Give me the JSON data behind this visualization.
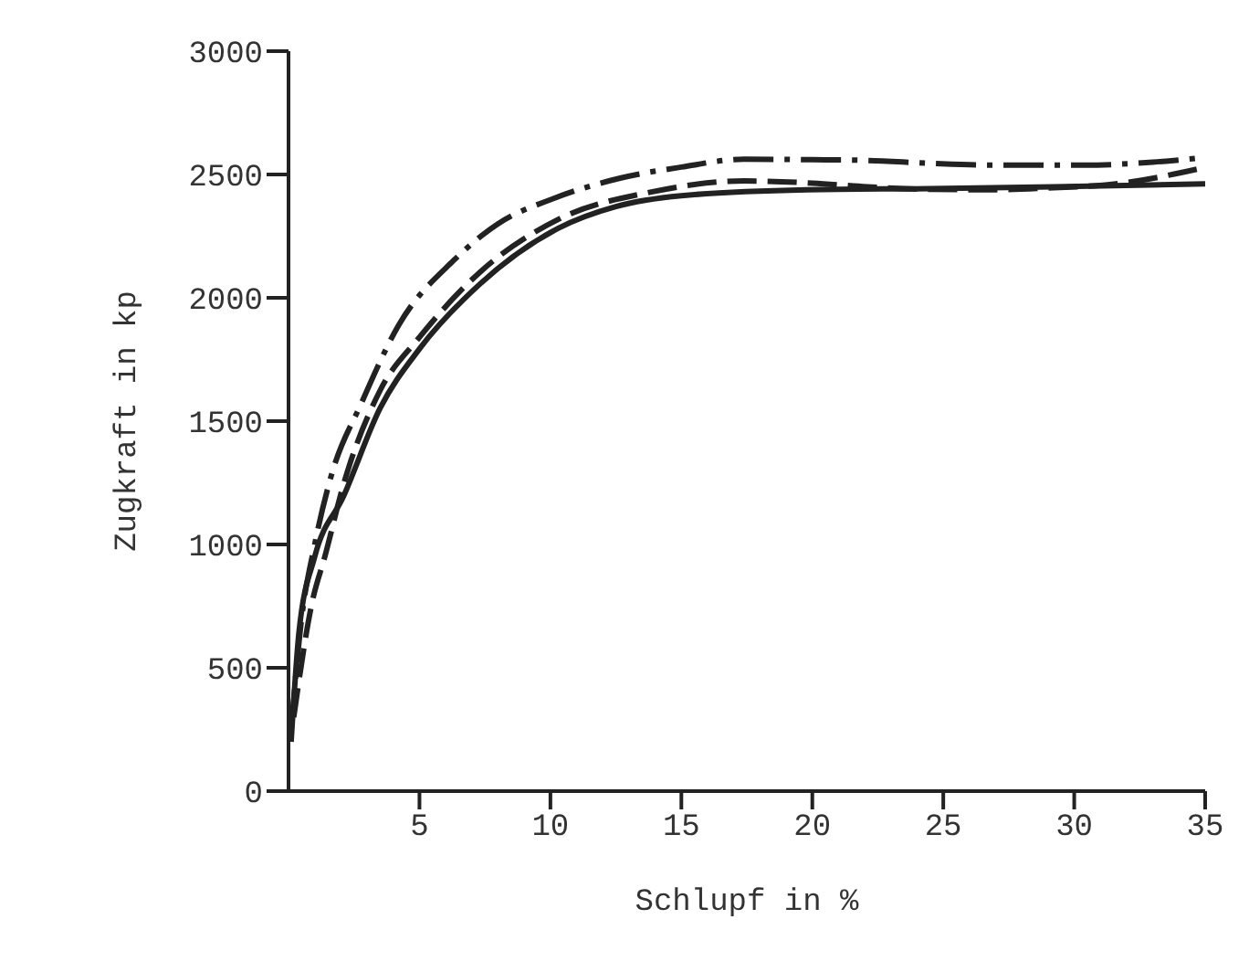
{
  "chart_data": {
    "type": "line",
    "xlabel": "Schlupf in %",
    "ylabel": "Zugkraft in kp",
    "xlim": [
      0,
      35
    ],
    "xticks": [
      5,
      10,
      15,
      20,
      25,
      30,
      35
    ],
    "ylim": [
      0,
      3000
    ],
    "yticks": [
      0,
      500,
      1000,
      1500,
      2000,
      2500,
      3000
    ],
    "marker": "none",
    "series": [
      {
        "color": "#222222",
        "line_style": "dashdot",
        "x": [
          0.1,
          0.5,
          1.0,
          1.6,
          2.8,
          4.2,
          6.3,
          8.0,
          10.1,
          12.7,
          15.0,
          17.4,
          20.0,
          22.1,
          24.5,
          26.8,
          30.4,
          33.0,
          35.0
        ],
        "values": [
          250,
          700,
          1000,
          1267,
          1577,
          1888,
          2151,
          2300,
          2402,
          2486,
          2530,
          2562,
          2560,
          2557,
          2545,
          2538,
          2538,
          2550,
          2569
        ]
      },
      {
        "color": "#222222",
        "line_style": "dashed",
        "x": [
          0.2,
          0.9,
          1.4,
          2.1,
          3.5,
          5.0,
          7.3,
          10.3,
          13.9,
          17.4,
          20.0,
          22.1,
          24.5,
          26.8,
          29.0,
          31.6,
          35.0
        ],
        "values": [
          300,
          765,
          956,
          1243,
          1625,
          1840,
          2103,
          2318,
          2430,
          2474,
          2465,
          2450,
          2440,
          2438,
          2445,
          2462,
          2529
        ]
      },
      {
        "color": "#222222",
        "line_style": "solid",
        "x": [
          0.1,
          0.4,
          1.0,
          2.1,
          3.5,
          5.0,
          7.3,
          10.3,
          12.5,
          15.0,
          19.8,
          24.5,
          29.2,
          35.0
        ],
        "values": [
          200,
          645,
          950,
          1195,
          1553,
          1793,
          2055,
          2282,
          2370,
          2414,
          2438,
          2443,
          2450,
          2462
        ]
      }
    ]
  }
}
